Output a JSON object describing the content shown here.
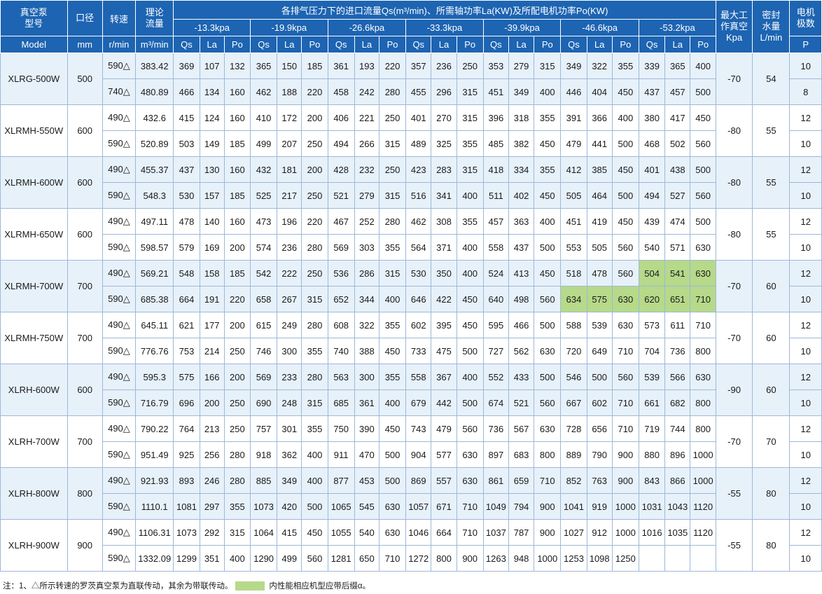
{
  "headers": {
    "model": [
      "真空泵",
      "型号",
      "Model"
    ],
    "bore": [
      "口径",
      "mm"
    ],
    "speed": "转速",
    "speed_unit": "r/min",
    "theory": [
      "理论",
      "流量"
    ],
    "theory_unit": "m³/min",
    "group_title": "各排气压力下的进口流量Qs(m³/min)、所需轴功率La(KW)及所配电机功率Po(KW)",
    "pressures": [
      "-13.3kpa",
      "-19.9kpa",
      "-26.6kpa",
      "-33.3kpa",
      "-39.9kpa",
      "-46.6kpa",
      "-53.2kpa"
    ],
    "sub": [
      "Qs",
      "La",
      "Po"
    ],
    "max_vac": [
      "最大工",
      "作真空",
      "Kpa"
    ],
    "seal": [
      "密封",
      "水量",
      "L/min"
    ],
    "poles": [
      "电机",
      "极数",
      "P"
    ]
  },
  "models": [
    {
      "name": "XLRG-500W",
      "bore": "500",
      "maxvac": "-70",
      "seal": "54",
      "rows": [
        {
          "speed": "590△",
          "flow": "383.42",
          "v": [
            "369",
            "107",
            "132",
            "365",
            "150",
            "185",
            "361",
            "193",
            "220",
            "357",
            "236",
            "250",
            "353",
            "279",
            "315",
            "349",
            "322",
            "355",
            "339",
            "365",
            "400"
          ],
          "poles": "10"
        },
        {
          "speed": "740△",
          "flow": "480.89",
          "v": [
            "466",
            "134",
            "160",
            "462",
            "188",
            "220",
            "458",
            "242",
            "280",
            "455",
            "296",
            "315",
            "451",
            "349",
            "400",
            "446",
            "404",
            "450",
            "437",
            "457",
            "500"
          ],
          "poles": "8"
        }
      ]
    },
    {
      "name": "XLRMH-550W",
      "bore": "600",
      "maxvac": "-80",
      "seal": "55",
      "rows": [
        {
          "speed": "490△",
          "flow": "432.6",
          "v": [
            "415",
            "124",
            "160",
            "410",
            "172",
            "200",
            "406",
            "221",
            "250",
            "401",
            "270",
            "315",
            "396",
            "318",
            "355",
            "391",
            "366",
            "400",
            "380",
            "417",
            "450"
          ],
          "poles": "12"
        },
        {
          "speed": "590△",
          "flow": "520.89",
          "v": [
            "503",
            "149",
            "185",
            "499",
            "207",
            "250",
            "494",
            "266",
            "315",
            "489",
            "325",
            "355",
            "485",
            "382",
            "450",
            "479",
            "441",
            "500",
            "468",
            "502",
            "560"
          ],
          "poles": "10"
        }
      ]
    },
    {
      "name": "XLRMH-600W",
      "bore": "600",
      "maxvac": "-80",
      "seal": "55",
      "rows": [
        {
          "speed": "490△",
          "flow": "455.37",
          "v": [
            "437",
            "130",
            "160",
            "432",
            "181",
            "200",
            "428",
            "232",
            "250",
            "423",
            "283",
            "315",
            "418",
            "334",
            "355",
            "412",
            "385",
            "450",
            "401",
            "438",
            "500"
          ],
          "poles": "12"
        },
        {
          "speed": "590△",
          "flow": "548.3",
          "v": [
            "530",
            "157",
            "185",
            "525",
            "217",
            "250",
            "521",
            "279",
            "315",
            "516",
            "341",
            "400",
            "511",
            "402",
            "450",
            "505",
            "464",
            "500",
            "494",
            "527",
            "560"
          ],
          "poles": "10"
        }
      ]
    },
    {
      "name": "XLRMH-650W",
      "bore": "600",
      "maxvac": "-80",
      "seal": "55",
      "rows": [
        {
          "speed": "490△",
          "flow": "497.11",
          "v": [
            "478",
            "140",
            "160",
            "473",
            "196",
            "220",
            "467",
            "252",
            "280",
            "462",
            "308",
            "355",
            "457",
            "363",
            "400",
            "451",
            "419",
            "450",
            "439",
            "474",
            "500"
          ],
          "poles": "12"
        },
        {
          "speed": "590△",
          "flow": "598.57",
          "v": [
            "579",
            "169",
            "200",
            "574",
            "236",
            "280",
            "569",
            "303",
            "355",
            "564",
            "371",
            "400",
            "558",
            "437",
            "500",
            "553",
            "505",
            "560",
            "540",
            "571",
            "630"
          ],
          "poles": "10"
        }
      ]
    },
    {
      "name": "XLRMH-700W",
      "bore": "700",
      "maxvac": "-70",
      "seal": "60",
      "rows": [
        {
          "speed": "490△",
          "flow": "569.21",
          "v": [
            "548",
            "158",
            "185",
            "542",
            "222",
            "250",
            "536",
            "286",
            "315",
            "530",
            "350",
            "400",
            "524",
            "413",
            "450",
            "518",
            "478",
            "560",
            "504",
            "541",
            "630"
          ],
          "poles": "12",
          "hl": [
            18,
            19,
            20
          ]
        },
        {
          "speed": "590△",
          "flow": "685.38",
          "v": [
            "664",
            "191",
            "220",
            "658",
            "267",
            "315",
            "652",
            "344",
            "400",
            "646",
            "422",
            "450",
            "640",
            "498",
            "560",
            "634",
            "575",
            "630",
            "620",
            "651",
            "710"
          ],
          "poles": "10",
          "hl": [
            15,
            16,
            17,
            18,
            19,
            20
          ]
        }
      ]
    },
    {
      "name": "XLRMH-750W",
      "bore": "700",
      "maxvac": "-70",
      "seal": "60",
      "rows": [
        {
          "speed": "490△",
          "flow": "645.11",
          "v": [
            "621",
            "177",
            "200",
            "615",
            "249",
            "280",
            "608",
            "322",
            "355",
            "602",
            "395",
            "450",
            "595",
            "466",
            "500",
            "588",
            "539",
            "630",
            "573",
            "611",
            "710"
          ],
          "poles": "12"
        },
        {
          "speed": "590△",
          "flow": "776.76",
          "v": [
            "753",
            "214",
            "250",
            "746",
            "300",
            "355",
            "740",
            "388",
            "450",
            "733",
            "475",
            "500",
            "727",
            "562",
            "630",
            "720",
            "649",
            "710",
            "704",
            "736",
            "800"
          ],
          "poles": "10"
        }
      ]
    },
    {
      "name": "XLRH-600W",
      "bore": "600",
      "maxvac": "-90",
      "seal": "60",
      "rows": [
        {
          "speed": "490△",
          "flow": "595.3",
          "v": [
            "575",
            "166",
            "200",
            "569",
            "233",
            "280",
            "563",
            "300",
            "355",
            "558",
            "367",
            "400",
            "552",
            "433",
            "500",
            "546",
            "500",
            "560",
            "539",
            "566",
            "630"
          ],
          "poles": "12"
        },
        {
          "speed": "590△",
          "flow": "716.79",
          "v": [
            "696",
            "200",
            "250",
            "690",
            "248",
            "315",
            "685",
            "361",
            "400",
            "679",
            "442",
            "500",
            "674",
            "521",
            "560",
            "667",
            "602",
            "710",
            "661",
            "682",
            "800"
          ],
          "poles": "10"
        }
      ]
    },
    {
      "name": "XLRH-700W",
      "bore": "700",
      "maxvac": "-70",
      "seal": "70",
      "rows": [
        {
          "speed": "490△",
          "flow": "790.22",
          "v": [
            "764",
            "213",
            "250",
            "757",
            "301",
            "355",
            "750",
            "390",
            "450",
            "743",
            "479",
            "560",
            "736",
            "567",
            "630",
            "728",
            "656",
            "710",
            "719",
            "744",
            "800"
          ],
          "poles": "12"
        },
        {
          "speed": "590△",
          "flow": "951.49",
          "v": [
            "925",
            "256",
            "280",
            "918",
            "362",
            "400",
            "911",
            "470",
            "500",
            "904",
            "577",
            "630",
            "897",
            "683",
            "800",
            "889",
            "790",
            "900",
            "880",
            "896",
            "1000"
          ],
          "poles": "10"
        }
      ]
    },
    {
      "name": "XLRH-800W",
      "bore": "800",
      "maxvac": "-55",
      "seal": "80",
      "rows": [
        {
          "speed": "490△",
          "flow": "921.93",
          "v": [
            "893",
            "246",
            "280",
            "885",
            "349",
            "400",
            "877",
            "453",
            "500",
            "869",
            "557",
            "630",
            "861",
            "659",
            "710",
            "852",
            "763",
            "900",
            "843",
            "866",
            "1000"
          ],
          "poles": "12"
        },
        {
          "speed": "590△",
          "flow": "1110.1",
          "v": [
            "1081",
            "297",
            "355",
            "1073",
            "420",
            "500",
            "1065",
            "545",
            "630",
            "1057",
            "671",
            "710",
            "1049",
            "794",
            "900",
            "1041",
            "919",
            "1000",
            "1031",
            "1043",
            "1120"
          ],
          "poles": "10"
        }
      ]
    },
    {
      "name": "XLRH-900W",
      "bore": "900",
      "maxvac": "-55",
      "seal": "80",
      "rows": [
        {
          "speed": "490△",
          "flow": "1106.31",
          "v": [
            "1073",
            "292",
            "315",
            "1064",
            "415",
            "450",
            "1055",
            "540",
            "630",
            "1046",
            "664",
            "710",
            "1037",
            "787",
            "900",
            "1027",
            "912",
            "1000",
            "1016",
            "1035",
            "1120"
          ],
          "poles": "12"
        },
        {
          "speed": "590△",
          "flow": "1332.09",
          "v": [
            "1299",
            "351",
            "400",
            "1290",
            "499",
            "560",
            "1281",
            "650",
            "710",
            "1272",
            "800",
            "900",
            "1263",
            "948",
            "1000",
            "1253",
            "1098",
            "1250",
            "",
            "",
            ""
          ],
          "poles": "10"
        }
      ]
    }
  ],
  "note": {
    "text": "注：1、△所示转速的罗茨真空泵为直联传动，其余为带联传动。",
    "legend": "内性能相应机型应带后缀α。",
    "highlight_color": "#b6d98a"
  }
}
